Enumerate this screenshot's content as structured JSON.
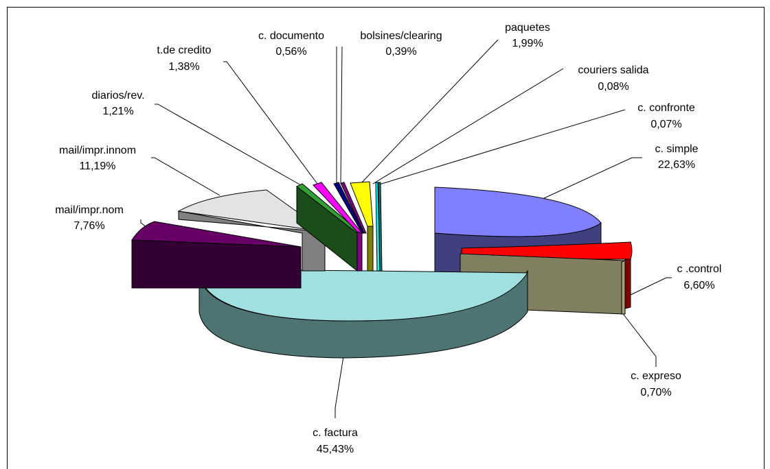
{
  "chart_data": {
    "type": "pie",
    "title": "",
    "legend": "none",
    "slices": [
      {
        "label": "c. simple",
        "value": "22,63%",
        "pct": 22.63,
        "color": "#8080ff"
      },
      {
        "label": "c .control",
        "value": "6,60%",
        "pct": 6.6,
        "color": "#ff0000"
      },
      {
        "label": "c. expreso",
        "value": "0,70%",
        "pct": 0.7,
        "color": "#a3a37a"
      },
      {
        "label": "c. factura",
        "value": "45,43%",
        "pct": 45.43,
        "color": "#a0e0e0"
      },
      {
        "label": "mail/impr.nom",
        "value": "7,76%",
        "pct": 7.76,
        "color": "#660066"
      },
      {
        "label": "mail/impr.innom",
        "value": "11,19%",
        "pct": 11.19,
        "color": "#e3e3e3"
      },
      {
        "label": "diarios/rev.",
        "value": "1,21%",
        "pct": 1.21,
        "color": "#33a033"
      },
      {
        "label": "t.de credito",
        "value": "1,38%",
        "pct": 1.38,
        "color": "#ff00ff"
      },
      {
        "label": "c. documento",
        "value": "0,56%",
        "pct": 0.56,
        "color": "#000080"
      },
      {
        "label": "bolsines/clearing",
        "value": "0,39%",
        "pct": 0.39,
        "color": "#800080"
      },
      {
        "label": "paquetes",
        "value": "1,99%",
        "pct": 1.99,
        "color": "#ffff00"
      },
      {
        "label": "couriers salida",
        "value": "0,08%",
        "pct": 0.08,
        "color": "#00ffff"
      },
      {
        "label": "c. confronte",
        "value": "0,07%",
        "pct": 0.07,
        "color": "#008080"
      }
    ]
  }
}
